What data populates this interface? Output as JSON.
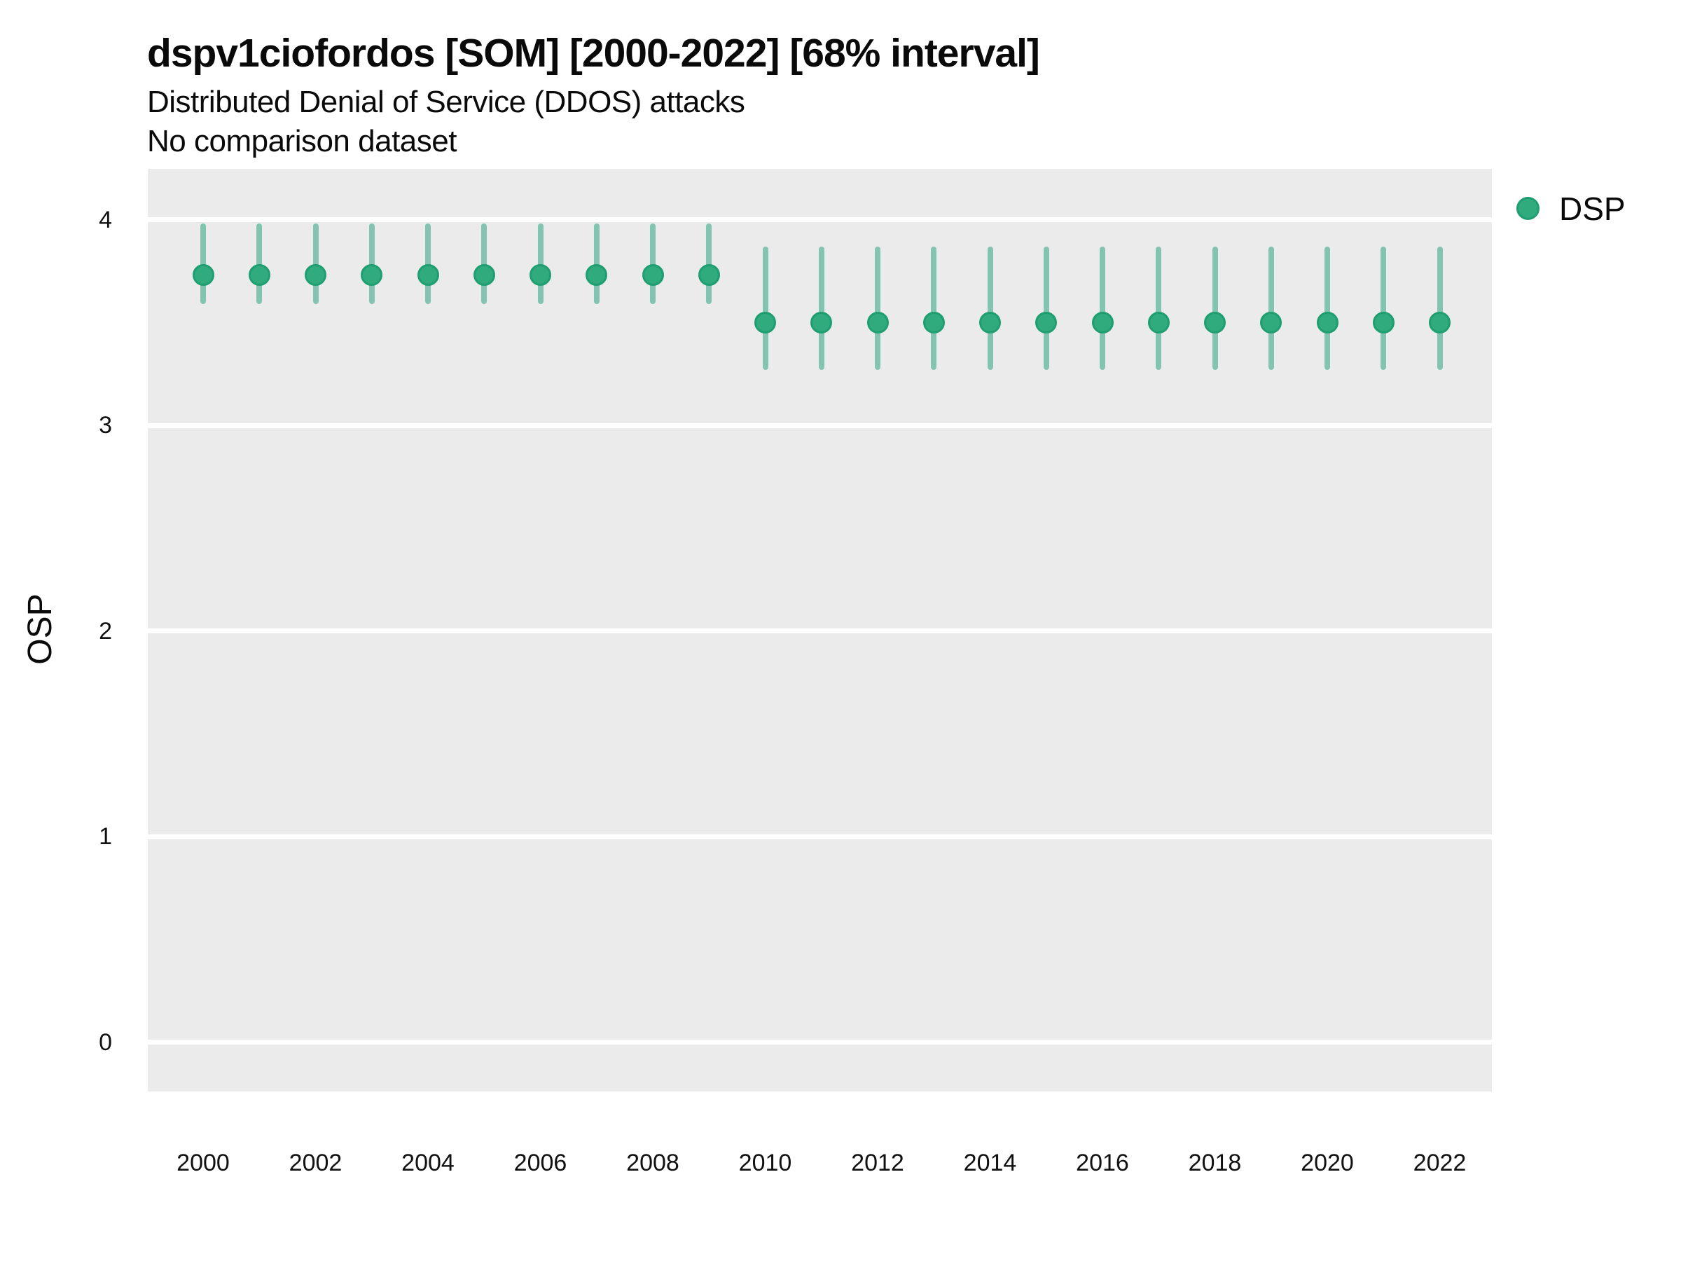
{
  "header": {
    "title": "dspv1ciofordos [SOM] [2000-2022] [68% interval]",
    "subtitle": "Distributed Denial of Service (DDOS) attacks",
    "comparison_note": "No comparison dataset"
  },
  "axes": {
    "y_title": "OSP",
    "y_ticks": [
      "4",
      "3",
      "2",
      "1",
      "0"
    ],
    "x_ticks": [
      "2000",
      "2002",
      "2004",
      "2006",
      "2008",
      "2010",
      "2012",
      "2014",
      "2016",
      "2018",
      "2020",
      "2022"
    ]
  },
  "legend": {
    "items": [
      {
        "label": "DSP",
        "color": "#2FAB7E",
        "border_color": "#1E9E71"
      }
    ]
  },
  "colors": {
    "panel_background": "#EBEBEB",
    "gridline": "#FFFFFF",
    "point_fill": "#2FAB7E",
    "point_border": "#1E9E71",
    "interval_line": "rgba(27,158,119,0.5)",
    "text": "#0A0A0A"
  },
  "chart_data": {
    "type": "scatter",
    "subtype": "pointrange-interval",
    "title": "dspv1ciofordos [SOM] [2000-2022] [68% interval]",
    "subtitle": "Distributed Denial of Service (DDOS) attacks",
    "note": "No comparison dataset",
    "interval": "68%",
    "xlabel": "",
    "ylabel": "OSP",
    "ylim": [
      -0.24,
      4.25
    ],
    "xlim": [
      1999,
      2023
    ],
    "y_tick_values": [
      0,
      1,
      2,
      3,
      4
    ],
    "x_tick_values": [
      2000,
      2002,
      2004,
      2006,
      2008,
      2010,
      2012,
      2014,
      2016,
      2018,
      2020,
      2022
    ],
    "grid": "horizontal-major-only",
    "legend_position": "right-top",
    "series": [
      {
        "name": "DSP",
        "points": [
          {
            "x": 2000,
            "y": 3.73,
            "y_lo": 3.59,
            "y_hi": 3.98
          },
          {
            "x": 2001,
            "y": 3.73,
            "y_lo": 3.59,
            "y_hi": 3.98
          },
          {
            "x": 2002,
            "y": 3.73,
            "y_lo": 3.59,
            "y_hi": 3.98
          },
          {
            "x": 2003,
            "y": 3.73,
            "y_lo": 3.59,
            "y_hi": 3.98
          },
          {
            "x": 2004,
            "y": 3.73,
            "y_lo": 3.59,
            "y_hi": 3.98
          },
          {
            "x": 2005,
            "y": 3.73,
            "y_lo": 3.59,
            "y_hi": 3.98
          },
          {
            "x": 2006,
            "y": 3.73,
            "y_lo": 3.59,
            "y_hi": 3.98
          },
          {
            "x": 2007,
            "y": 3.73,
            "y_lo": 3.59,
            "y_hi": 3.98
          },
          {
            "x": 2008,
            "y": 3.73,
            "y_lo": 3.59,
            "y_hi": 3.98
          },
          {
            "x": 2009,
            "y": 3.73,
            "y_lo": 3.59,
            "y_hi": 3.98
          },
          {
            "x": 2010,
            "y": 3.5,
            "y_lo": 3.27,
            "y_hi": 3.87
          },
          {
            "x": 2011,
            "y": 3.5,
            "y_lo": 3.27,
            "y_hi": 3.87
          },
          {
            "x": 2012,
            "y": 3.5,
            "y_lo": 3.27,
            "y_hi": 3.87
          },
          {
            "x": 2013,
            "y": 3.5,
            "y_lo": 3.27,
            "y_hi": 3.87
          },
          {
            "x": 2014,
            "y": 3.5,
            "y_lo": 3.27,
            "y_hi": 3.87
          },
          {
            "x": 2015,
            "y": 3.5,
            "y_lo": 3.27,
            "y_hi": 3.87
          },
          {
            "x": 2016,
            "y": 3.5,
            "y_lo": 3.27,
            "y_hi": 3.87
          },
          {
            "x": 2017,
            "y": 3.5,
            "y_lo": 3.27,
            "y_hi": 3.87
          },
          {
            "x": 2018,
            "y": 3.5,
            "y_lo": 3.27,
            "y_hi": 3.87
          },
          {
            "x": 2019,
            "y": 3.5,
            "y_lo": 3.27,
            "y_hi": 3.87
          },
          {
            "x": 2020,
            "y": 3.5,
            "y_lo": 3.27,
            "y_hi": 3.87
          },
          {
            "x": 2021,
            "y": 3.5,
            "y_lo": 3.27,
            "y_hi": 3.87
          },
          {
            "x": 2022,
            "y": 3.5,
            "y_lo": 3.27,
            "y_hi": 3.87
          }
        ]
      }
    ]
  }
}
